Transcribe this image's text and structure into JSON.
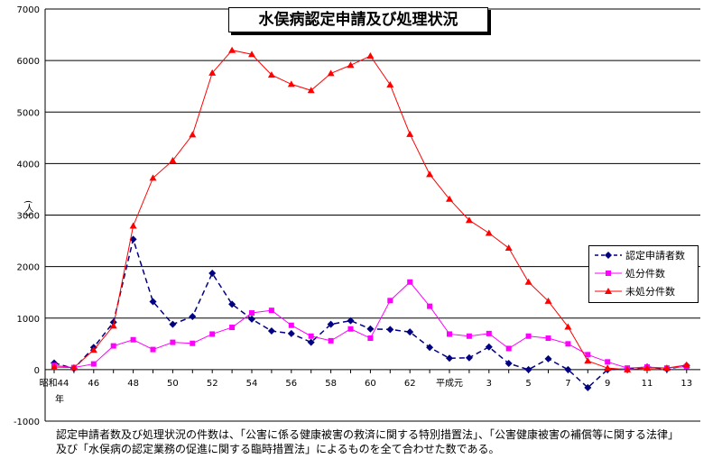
{
  "chart_data": {
    "type": "line",
    "title": "水俣病認定申請及び処理状況",
    "ylabel": "(人)",
    "ylim": [
      -1000,
      7000
    ],
    "yticks": [
      "7000",
      "6000",
      "5000",
      "4000",
      "3000",
      "2000",
      "1000",
      "0",
      "-1000"
    ],
    "grid": true,
    "legend_position": "right",
    "xticks": [
      "昭和44",
      "46",
      "48",
      "50",
      "52",
      "54",
      "56",
      "58",
      "60",
      "62",
      "平成元",
      "3",
      "5",
      "7",
      "9",
      "11",
      "13"
    ],
    "xlabel_extra": "年",
    "series": [
      {
        "name": "認定申請者数",
        "color": "#000080",
        "marker": "diamond",
        "dash": true,
        "values": [
          130,
          20,
          430,
          920,
          2530,
          1320,
          880,
          1030,
          1870,
          1270,
          980,
          750,
          700,
          530,
          880,
          950,
          790,
          780,
          730,
          430,
          220,
          230,
          440,
          120,
          0,
          210,
          0,
          -350,
          0,
          10,
          50,
          10,
          80
        ]
      },
      {
        "name": "処分件数",
        "color": "#ff00ff",
        "marker": "square",
        "dash": false,
        "values": [
          80,
          40,
          110,
          460,
          580,
          390,
          530,
          510,
          690,
          820,
          1100,
          1150,
          860,
          650,
          560,
          790,
          610,
          1340,
          1700,
          1230,
          690,
          650,
          700,
          410,
          650,
          610,
          500,
          290,
          150,
          30,
          50,
          30,
          60
        ]
      },
      {
        "name": "未処分件数",
        "color": "#ff0000",
        "marker": "triangle",
        "dash": false,
        "values": [
          50,
          40,
          380,
          850,
          2790,
          3720,
          4060,
          4560,
          5760,
          6200,
          6120,
          5720,
          5540,
          5420,
          5750,
          5910,
          6090,
          5530,
          4570,
          3790,
          3310,
          2900,
          2650,
          2360,
          1700,
          1330,
          830,
          170,
          30,
          0,
          30,
          30,
          90
        ]
      }
    ]
  },
  "note": {
    "line1": "認定申請者数及び処理状況の件数は、「公害に係る健康被害の救済に関する特別措置法」、「公害健康被害の補償等に関する法律」",
    "line2": "及び「水俣病の認定業務の促進に関する臨時措置法」によるものを全て合わせた数である。"
  }
}
